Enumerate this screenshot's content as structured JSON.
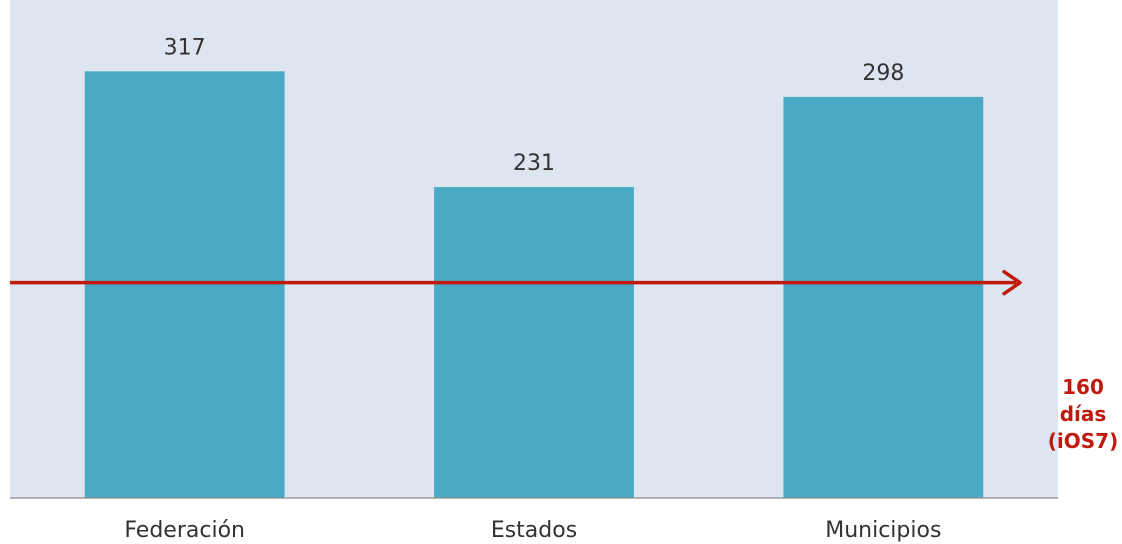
{
  "chart_data": {
    "type": "bar",
    "categories": [
      "Federación",
      "Estados",
      "Municipios"
    ],
    "values": [
      317,
      231,
      298
    ],
    "ylim": [
      0,
      370
    ],
    "grid": false,
    "reference_line": {
      "value": 160,
      "label_lines": [
        "160",
        "días",
        "(iOS7)"
      ]
    }
  },
  "colors": {
    "bar": "#4aaac5",
    "plot_background": "#dde5f0",
    "reference_line": "#c0190d",
    "text": "#333333"
  }
}
